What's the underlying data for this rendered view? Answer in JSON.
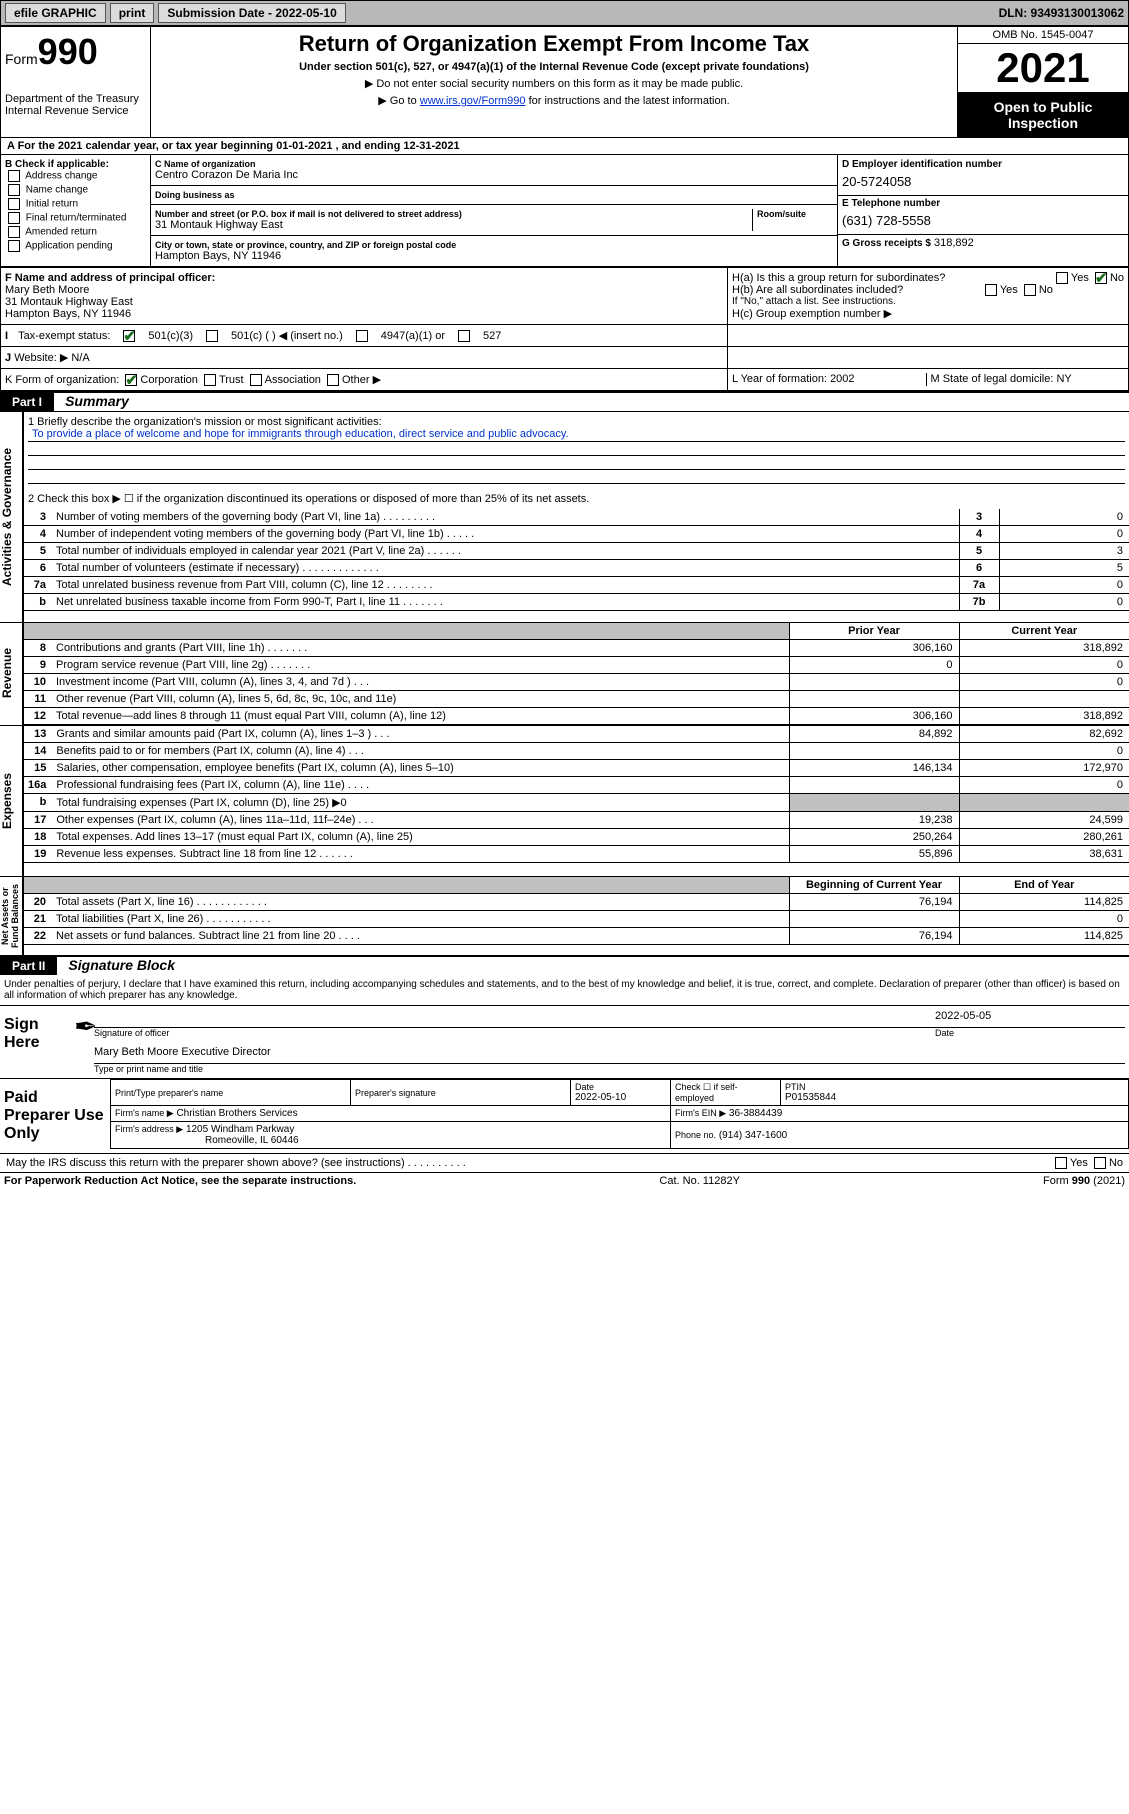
{
  "topbar": {
    "efile": "efile GRAPHIC",
    "print": "print",
    "subdate_label": "Submission Date - 2022-05-10",
    "dln": "DLN: 93493130013062"
  },
  "header": {
    "form_label": "Form",
    "form_number": "990",
    "dept": "Department of the Treasury\nInternal Revenue Service",
    "title": "Return of Organization Exempt From Income Tax",
    "subtitle": "Under section 501(c), 527, or 4947(a)(1) of the Internal Revenue Code (except private foundations)",
    "note1": "▶ Do not enter social security numbers on this form as it may be made public.",
    "note2_pre": "▶ Go to ",
    "note2_link": "www.irs.gov/Form990",
    "note2_post": " for instructions and the latest information.",
    "omb": "OMB No. 1545-0047",
    "year": "2021",
    "openpub": "Open to Public Inspection"
  },
  "rowA": {
    "text": "A For the 2021 calendar year, or tax year beginning 01-01-2021   , and ending 12-31-2021"
  },
  "boxB": {
    "header": "B Check if applicable:",
    "items": [
      "Address change",
      "Name change",
      "Initial return",
      "Final return/terminated",
      "Amended return",
      "Application pending"
    ]
  },
  "boxC": {
    "name_label": "C Name of organization",
    "name": "Centro Corazon De Maria Inc",
    "dba_label": "Doing business as",
    "dba": "",
    "addr_label": "Number and street (or P.O. box if mail is not delivered to street address)",
    "room_label": "Room/suite",
    "addr": "31 Montauk Highway East",
    "city_label": "City or town, state or province, country, and ZIP or foreign postal code",
    "city": "Hampton Bays, NY  11946"
  },
  "boxD": {
    "label": "D Employer identification number",
    "val": "20-5724058"
  },
  "boxE": {
    "label": "E Telephone number",
    "val": "(631) 728-5558"
  },
  "boxG": {
    "label": "G Gross receipts $",
    "val": "318,892"
  },
  "boxF": {
    "label": "F Name and address of principal officer:",
    "name": "Mary Beth Moore",
    "addr1": "31 Montauk Highway East",
    "addr2": "Hampton Bays, NY  11946"
  },
  "boxH": {
    "a": "H(a)  Is this a group return for subordinates?",
    "b": "H(b)  Are all subordinates included?",
    "b_note": "If \"No,\" attach a list. See instructions.",
    "c": "H(c)  Group exemption number ▶",
    "yes": "Yes",
    "no": "No"
  },
  "rowI": {
    "label": "Tax-exempt status:",
    "opts": [
      "501(c)(3)",
      "501(c) (   ) ◀ (insert no.)",
      "4947(a)(1) or",
      "527"
    ]
  },
  "rowJ": {
    "label": "Website: ▶",
    "val": "N/A"
  },
  "rowK": {
    "label": "K Form of organization:",
    "opts": [
      "Corporation",
      "Trust",
      "Association",
      "Other ▶"
    ]
  },
  "rowL": {
    "label": "L Year of formation:",
    "val": "2002"
  },
  "rowM": {
    "label": "M State of legal domicile:",
    "val": "NY"
  },
  "part1": {
    "hdr": "Part I",
    "title": "Summary"
  },
  "verticals": {
    "gov": "Activities & Governance",
    "rev": "Revenue",
    "exp": "Expenses",
    "net": "Net Assets or Fund Balances"
  },
  "mission": {
    "line1_label": "1  Briefly describe the organization's mission or most significant activities:",
    "text": "To provide a place of welcome and hope for immigrants through education, direct service and public advocacy."
  },
  "l2": "2    Check this box ▶ ☐  if the organization discontinued its operations or disposed of more than 25% of its net assets.",
  "lines_gov": [
    {
      "n": "3",
      "t": "Number of voting members of the governing body (Part VI, line 1a)   .   .   .   .   .   .   .   .   .",
      "box": "3",
      "v": "0"
    },
    {
      "n": "4",
      "t": "Number of independent voting members of the governing body (Part VI, line 1b)  .   .   .   .   .",
      "box": "4",
      "v": "0"
    },
    {
      "n": "5",
      "t": "Total number of individuals employed in calendar year 2021 (Part V, line 2a)   .   .   .   .   .   .",
      "box": "5",
      "v": "3"
    },
    {
      "n": "6",
      "t": "Total number of volunteers (estimate if necessary)   .   .   .   .   .   .   .   .   .   .   .   .   .",
      "box": "6",
      "v": "5"
    },
    {
      "n": "7a",
      "t": "Total unrelated business revenue from Part VIII, column (C), line 12  .   .   .   .   .   .   .   .",
      "box": "7a",
      "v": "0"
    },
    {
      "n": "b",
      "t": "Net unrelated business taxable income from Form 990-T, Part I, line 11  .   .   .   .   .   .   .",
      "box": "7b",
      "v": "0"
    }
  ],
  "yr_hdr": {
    "prior": "Prior Year",
    "curr": "Current Year"
  },
  "lines_rev": [
    {
      "n": "8",
      "t": "Contributions and grants (Part VIII, line 1h)   .   .   .   .   .   .   .",
      "p": "306,160",
      "c": "318,892"
    },
    {
      "n": "9",
      "t": "Program service revenue (Part VIII, line 2g)   .   .   .   .   .   .   .",
      "p": "0",
      "c": "0"
    },
    {
      "n": "10",
      "t": "Investment income (Part VIII, column (A), lines 3, 4, and 7d )  .   .   .",
      "p": "",
      "c": "0"
    },
    {
      "n": "11",
      "t": "Other revenue (Part VIII, column (A), lines 5, 6d, 8c, 9c, 10c, and 11e)",
      "p": "",
      "c": ""
    },
    {
      "n": "12",
      "t": "Total revenue—add lines 8 through 11 (must equal Part VIII, column (A), line 12)",
      "p": "306,160",
      "c": "318,892"
    }
  ],
  "lines_exp": [
    {
      "n": "13",
      "t": "Grants and similar amounts paid (Part IX, column (A), lines 1–3 )  .   .   .",
      "p": "84,892",
      "c": "82,692"
    },
    {
      "n": "14",
      "t": "Benefits paid to or for members (Part IX, column (A), line 4)  .   .   .",
      "p": "",
      "c": "0"
    },
    {
      "n": "15",
      "t": "Salaries, other compensation, employee benefits (Part IX, column (A), lines 5–10)",
      "p": "146,134",
      "c": "172,970"
    },
    {
      "n": "16a",
      "t": "Professional fundraising fees (Part IX, column (A), line 11e)  .   .   .   .",
      "p": "",
      "c": "0"
    },
    {
      "n": "b",
      "t": "Total fundraising expenses (Part IX, column (D), line 25) ▶0",
      "p": "grey",
      "c": "grey"
    },
    {
      "n": "17",
      "t": "Other expenses (Part IX, column (A), lines 11a–11d, 11f–24e)  .   .   .",
      "p": "19,238",
      "c": "24,599"
    },
    {
      "n": "18",
      "t": "Total expenses. Add lines 13–17 (must equal Part IX, column (A), line 25)",
      "p": "250,264",
      "c": "280,261"
    },
    {
      "n": "19",
      "t": "Revenue less expenses. Subtract line 18 from line 12  .   .   .   .   .   .",
      "p": "55,896",
      "c": "38,631"
    }
  ],
  "net_hdr": {
    "b": "Beginning of Current Year",
    "e": "End of Year"
  },
  "lines_net": [
    {
      "n": "20",
      "t": "Total assets (Part X, line 16)   .   .   .   .   .   .   .   .   .   .   .   .",
      "p": "76,194",
      "c": "114,825"
    },
    {
      "n": "21",
      "t": "Total liabilities (Part X, line 26)   .   .   .   .   .   .   .   .   .   .   .",
      "p": "",
      "c": "0"
    },
    {
      "n": "22",
      "t": "Net assets or fund balances. Subtract line 21 from line 20  .   .   .   .",
      "p": "76,194",
      "c": "114,825"
    }
  ],
  "part2": {
    "hdr": "Part II",
    "title": "Signature Block"
  },
  "penalty": "Under penalties of perjury, I declare that I have examined this return, including accompanying schedules and statements, and to the best of my knowledge and belief, it is true, correct, and complete. Declaration of preparer (other than officer) is based on all information of which preparer has any knowledge.",
  "sign": {
    "here": "Sign Here",
    "sig_label": "Signature of officer",
    "date_label": "Date",
    "date_val": "2022-05-05",
    "name": "Mary Beth Moore  Executive Director",
    "name_label": "Type or print name and title"
  },
  "paid": {
    "here": "Paid Preparer Use Only",
    "c1": "Print/Type preparer's name",
    "c2": "Preparer's signature",
    "c3": "Date",
    "c3v": "2022-05-10",
    "c4": "Check ☐ if self-employed",
    "c5": "PTIN",
    "c5v": "P01535844",
    "firm_name_l": "Firm's name    ▶",
    "firm_name": "Christian Brothers Services",
    "firm_ein_l": "Firm's EIN ▶",
    "firm_ein": "36-3884439",
    "firm_addr_l": "Firm's address ▶",
    "firm_addr1": "1205 Windham Parkway",
    "firm_addr2": "Romeoville, IL  60446",
    "phone_l": "Phone no.",
    "phone": "(914) 347-1600"
  },
  "discuss": "May the IRS discuss this return with the preparer shown above? (see instructions)   .   .   .   .   .   .   .   .   .   .",
  "footer": {
    "left": "For Paperwork Reduction Act Notice, see the separate instructions.",
    "mid": "Cat. No. 11282Y",
    "right": "Form 990 (2021)"
  }
}
